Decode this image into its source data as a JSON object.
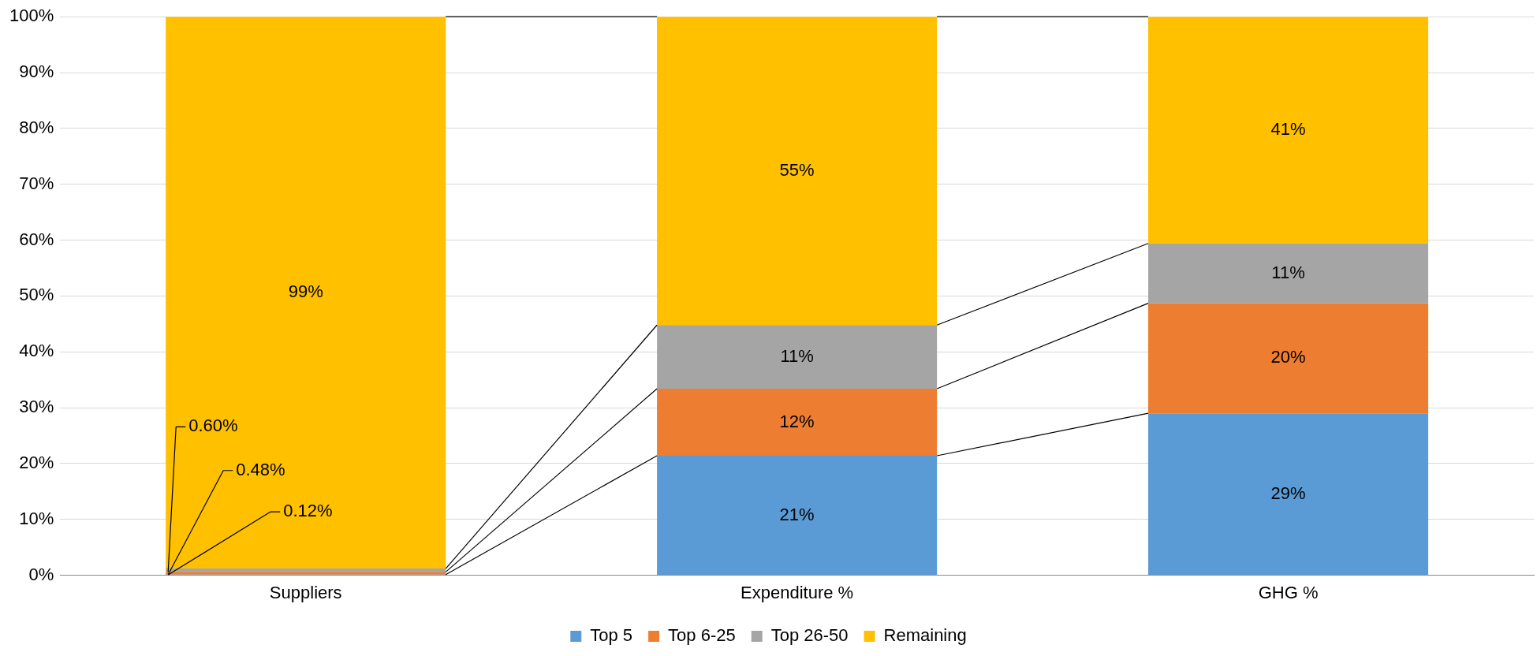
{
  "chart_data": {
    "type": "bar",
    "stacked": true,
    "categories": [
      "Suppliers",
      "Expenditure %",
      "GHG %"
    ],
    "series": [
      {
        "name": "Top 5",
        "color": "#5b9bd5",
        "values": [
          0.12,
          21.4,
          29.0
        ],
        "value_labels": [
          "0.12%",
          "21%",
          "29%"
        ]
      },
      {
        "name": "Top 6-25",
        "color": "#ed7d31",
        "values": [
          0.48,
          12.0,
          19.7
        ],
        "value_labels": [
          "0.48%",
          "12%",
          "20%"
        ]
      },
      {
        "name": "Top 26-50",
        "color": "#a5a5a5",
        "values": [
          0.6,
          11.4,
          10.7
        ],
        "value_labels": [
          "0.60%",
          "11%",
          "11%"
        ]
      },
      {
        "name": "Remaining",
        "color": "#ffc000",
        "values": [
          98.8,
          55.2,
          40.6
        ],
        "value_labels": [
          "99%",
          "55%",
          "41%"
        ]
      }
    ],
    "ylim": [
      0,
      100
    ],
    "yticks": [
      {
        "value": 0,
        "label": "0%"
      },
      {
        "value": 10,
        "label": "10%"
      },
      {
        "value": 20,
        "label": "20%"
      },
      {
        "value": 30,
        "label": "30%"
      },
      {
        "value": 40,
        "label": "40%"
      },
      {
        "value": 50,
        "label": "50%"
      },
      {
        "value": 60,
        "label": "60%"
      },
      {
        "value": 70,
        "label": "70%"
      },
      {
        "value": 80,
        "label": "80%"
      },
      {
        "value": 90,
        "label": "90%"
      },
      {
        "value": 100,
        "label": "100%"
      }
    ],
    "grid": "y",
    "legend": "bottom"
  }
}
